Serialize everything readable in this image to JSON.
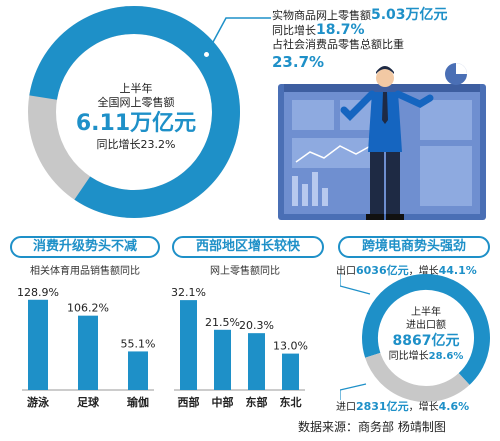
{
  "overview": {
    "line1": "上半年",
    "line2": "全国网上零售额",
    "total": "6.11万亿元",
    "growth": "同比增长23.2%",
    "share_fraction": 0.82
  },
  "physical": {
    "line1_prefix": "实物商品网上零售额",
    "line1_value": "5.03万亿元",
    "line2_prefix": "同比增长",
    "line2_value": "18.7%",
    "line3": "占社会消费品零售总额比重",
    "share": "23.7%"
  },
  "colors": {
    "accent": "#1e90c8",
    "track": "#c8c8c8",
    "bar": "#1e90c8"
  },
  "chart_data": [
    {
      "type": "bar",
      "title": "消费升级势头不减",
      "subtitle": "相关体育用品销售额同比",
      "categories": [
        "游泳",
        "足球",
        "瑜伽"
      ],
      "values": [
        128.9,
        106.2,
        55.1
      ],
      "value_labels": [
        "128.9%",
        "106.2%",
        "55.1%"
      ],
      "ylim": [
        0,
        140
      ]
    },
    {
      "type": "bar",
      "title": "西部地区增长较快",
      "subtitle": "网上零售额同比",
      "categories": [
        "西部",
        "中部",
        "东部",
        "东北"
      ],
      "values": [
        32.1,
        21.5,
        20.3,
        13.0
      ],
      "value_labels": [
        "32.1%",
        "21.5%",
        "20.3%",
        "13.0%"
      ],
      "ylim": [
        0,
        35
      ]
    },
    {
      "type": "pie",
      "title": "跨境电商势头强劲",
      "categories": [
        "出口",
        "进口"
      ],
      "values": [
        6036,
        2831
      ]
    }
  ],
  "trade": {
    "export_prefix": "出口",
    "export_value": "6036亿元",
    "export_growth_prefix": "，增长",
    "export_growth": "44.1%",
    "import_prefix": "进口",
    "import_value": "2831亿元",
    "import_growth_prefix": "，增长",
    "import_growth": "4.6%",
    "center_line1": "上半年",
    "center_line2": "进出口额",
    "center_total": "8867亿元",
    "center_growth_prefix": "同比增长",
    "center_growth": "28.6%"
  },
  "source": "数据来源：商务部  杨靖制图"
}
